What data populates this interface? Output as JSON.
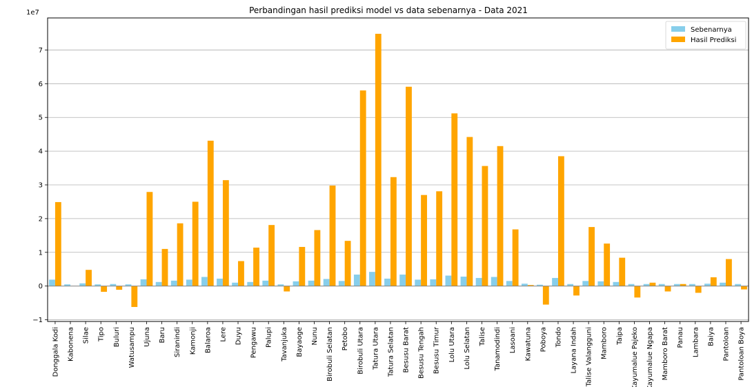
{
  "chart_data": {
    "type": "bar",
    "title": "Perbandingan hasil prediksi model vs data sebenarnya - Data 2021",
    "xlabel": "",
    "ylabel": "",
    "y_scale_label": "1e7",
    "y_unit_scale": 10000000,
    "ylim": [
      -10500000,
      79500000
    ],
    "yticks": [
      -1,
      0,
      1,
      2,
      3,
      4,
      5,
      6,
      7
    ],
    "grid": "horizontal",
    "legend_position": "top-right",
    "categories": [
      "Donggala Kodi",
      "Kabonena",
      "Silae",
      "Tipo",
      "Buluri",
      "Watusampu",
      "Ujuna",
      "Baru",
      "Siranindi",
      "Kamonji",
      "Balaroa",
      "Lere",
      "Duyu",
      "Pengawu",
      "Palupi",
      "Tavanjuka",
      "Bayaoge",
      "Nunu",
      "Birobuli Selatan",
      "Petobo",
      "Birobuli Utara",
      "Tatura Utara",
      "Tatura Selatan",
      "Besusu Barat",
      "Besusu Tengah",
      "Besusu Timur",
      "Lolu Utara",
      "Lolu Selatan",
      "Talise",
      "Tanamodindi",
      "Lasoani",
      "Kawatuna",
      "Poboya",
      "Tondo",
      "Layana Indah",
      "Talise Valangguni",
      "Mamboro",
      "Taipa",
      "Kayumalue Pajeko",
      "Kayumalue Ngapa",
      "Mamboro Barat",
      "Panau",
      "Lambara",
      "Baiya",
      "Pantoloan",
      "Pantoloan Boya"
    ],
    "series": [
      {
        "name": "Sebenarnya",
        "color": "#87ceeb",
        "values": [
          1900000,
          500000,
          800000,
          500000,
          600000,
          500000,
          2000000,
          1200000,
          1600000,
          1900000,
          2700000,
          2200000,
          1000000,
          1200000,
          1600000,
          500000,
          1400000,
          1600000,
          2100000,
          1500000,
          3400000,
          4200000,
          2200000,
          3400000,
          1900000,
          2000000,
          3100000,
          2800000,
          2400000,
          2700000,
          1500000,
          700000,
          400000,
          2400000,
          600000,
          1500000,
          1400000,
          1200000,
          600000,
          600000,
          600000,
          600000,
          600000,
          700000,
          1000000,
          600000
        ]
      },
      {
        "name": "Hasil Prediksi",
        "color": "#ffa500",
        "values": [
          24900000,
          0,
          4800000,
          -1700000,
          -1100000,
          -6200000,
          27900000,
          11000000,
          18600000,
          25000000,
          43100000,
          31400000,
          7400000,
          11400000,
          18100000,
          -1600000,
          11600000,
          16600000,
          29800000,
          13400000,
          58000000,
          74800000,
          32300000,
          59100000,
          27000000,
          28100000,
          51200000,
          44200000,
          35600000,
          41500000,
          16800000,
          300000,
          -5500000,
          38500000,
          -2800000,
          17500000,
          12600000,
          8400000,
          -3400000,
          1000000,
          -1600000,
          600000,
          -2000000,
          2600000,
          8000000,
          -1000000
        ]
      }
    ]
  }
}
